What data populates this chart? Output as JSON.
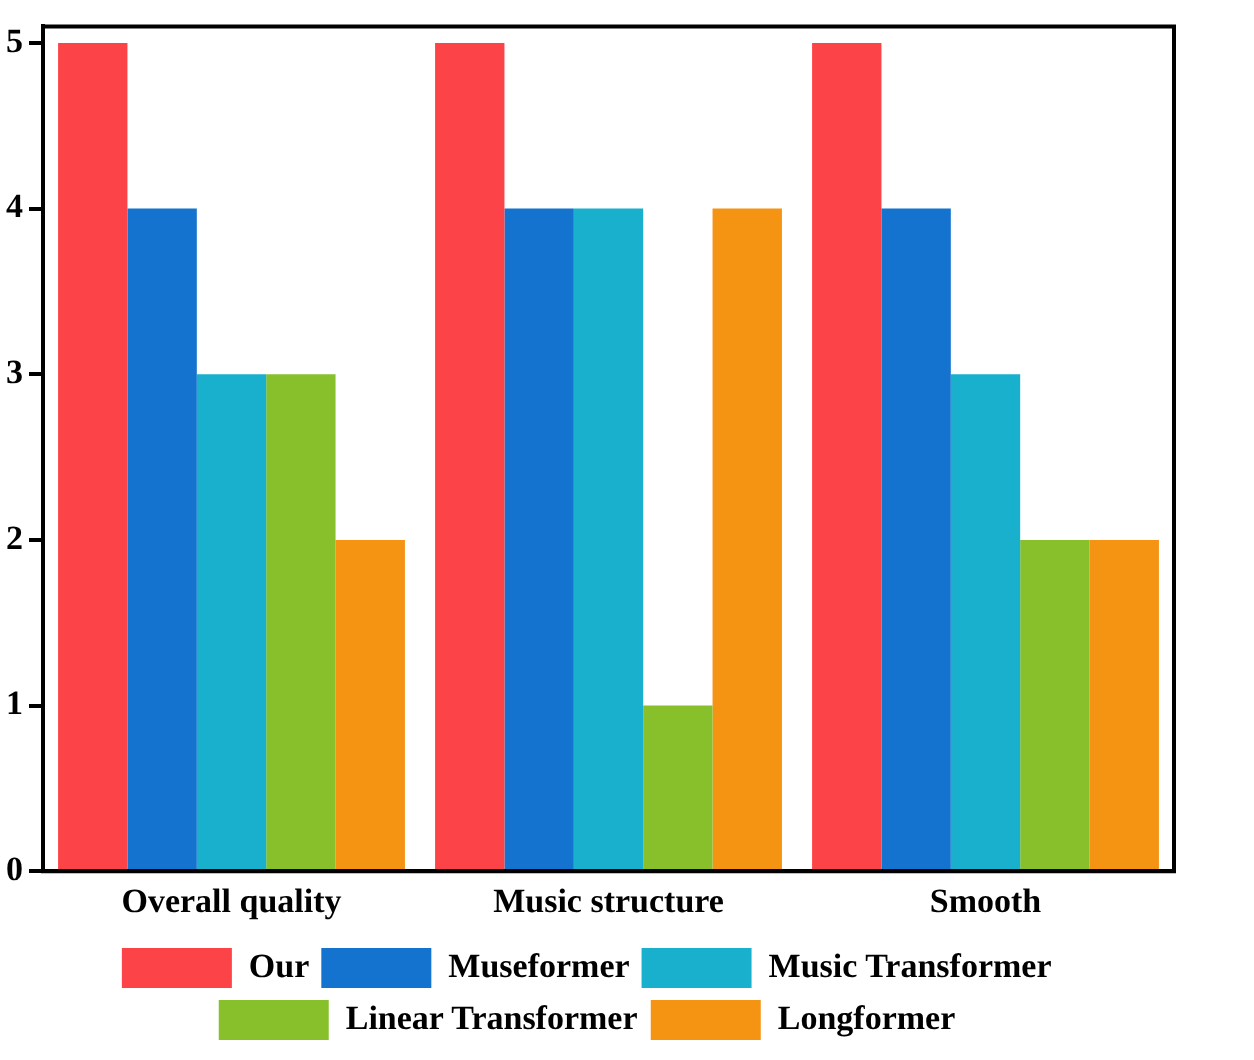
{
  "chart_data": {
    "type": "bar",
    "categories": [
      "Overall quality",
      "Music structure",
      "Smooth"
    ],
    "series": [
      {
        "name": "Our",
        "color": "#fc4348",
        "values": [
          5,
          5,
          5
        ]
      },
      {
        "name": "Museformer",
        "color": "#1373ce",
        "values": [
          4,
          4,
          4
        ]
      },
      {
        "name": "Music Transformer",
        "color": "#18b0cc",
        "values": [
          3,
          4,
          3
        ]
      },
      {
        "name": "Linear Transformer",
        "color": "#87c02a",
        "values": [
          3,
          1,
          2
        ]
      },
      {
        "name": "Longformer",
        "color": "#f59312",
        "values": [
          2,
          4,
          2
        ]
      }
    ],
    "ylim": [
      0,
      5.1
    ],
    "yticks": [
      0,
      1,
      2,
      3,
      4,
      5
    ],
    "grid": false,
    "legend": "bottom"
  }
}
